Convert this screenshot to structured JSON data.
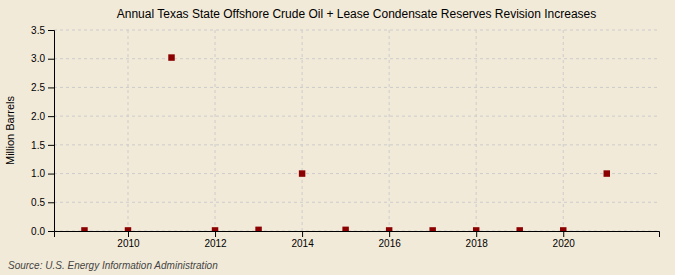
{
  "chart_data": {
    "type": "scatter",
    "title": "Annual Texas State Offshore Crude Oil + Lease Condensate Reserves Revision Increases",
    "ylabel": "Million Barrels",
    "source": "Source: U.S. Energy Information Administration",
    "x": [
      2009,
      2010,
      2011,
      2012,
      2013,
      2014,
      2015,
      2016,
      2017,
      2018,
      2019,
      2020,
      2021
    ],
    "values": [
      0.01,
      0.01,
      3.02,
      0.01,
      0.02,
      1.0,
      0.02,
      0.01,
      0.01,
      0.01,
      0.01,
      0.01,
      1.0
    ],
    "color": "#8b0000",
    "marker": "square",
    "xlim": [
      2008.3,
      2022.2
    ],
    "ylim": [
      0.0,
      3.5
    ],
    "xticks": [
      2010,
      2012,
      2014,
      2016,
      2018,
      2020
    ],
    "yticks": [
      {
        "value": 0.0,
        "label": "0.0"
      },
      0.5,
      {
        "value": 1.0,
        "label": "1.0"
      },
      1.5,
      {
        "value": 2.0,
        "label": "2.0"
      },
      2.5,
      {
        "value": 3.0,
        "label": "3.0"
      },
      3.5
    ],
    "grid": true
  }
}
